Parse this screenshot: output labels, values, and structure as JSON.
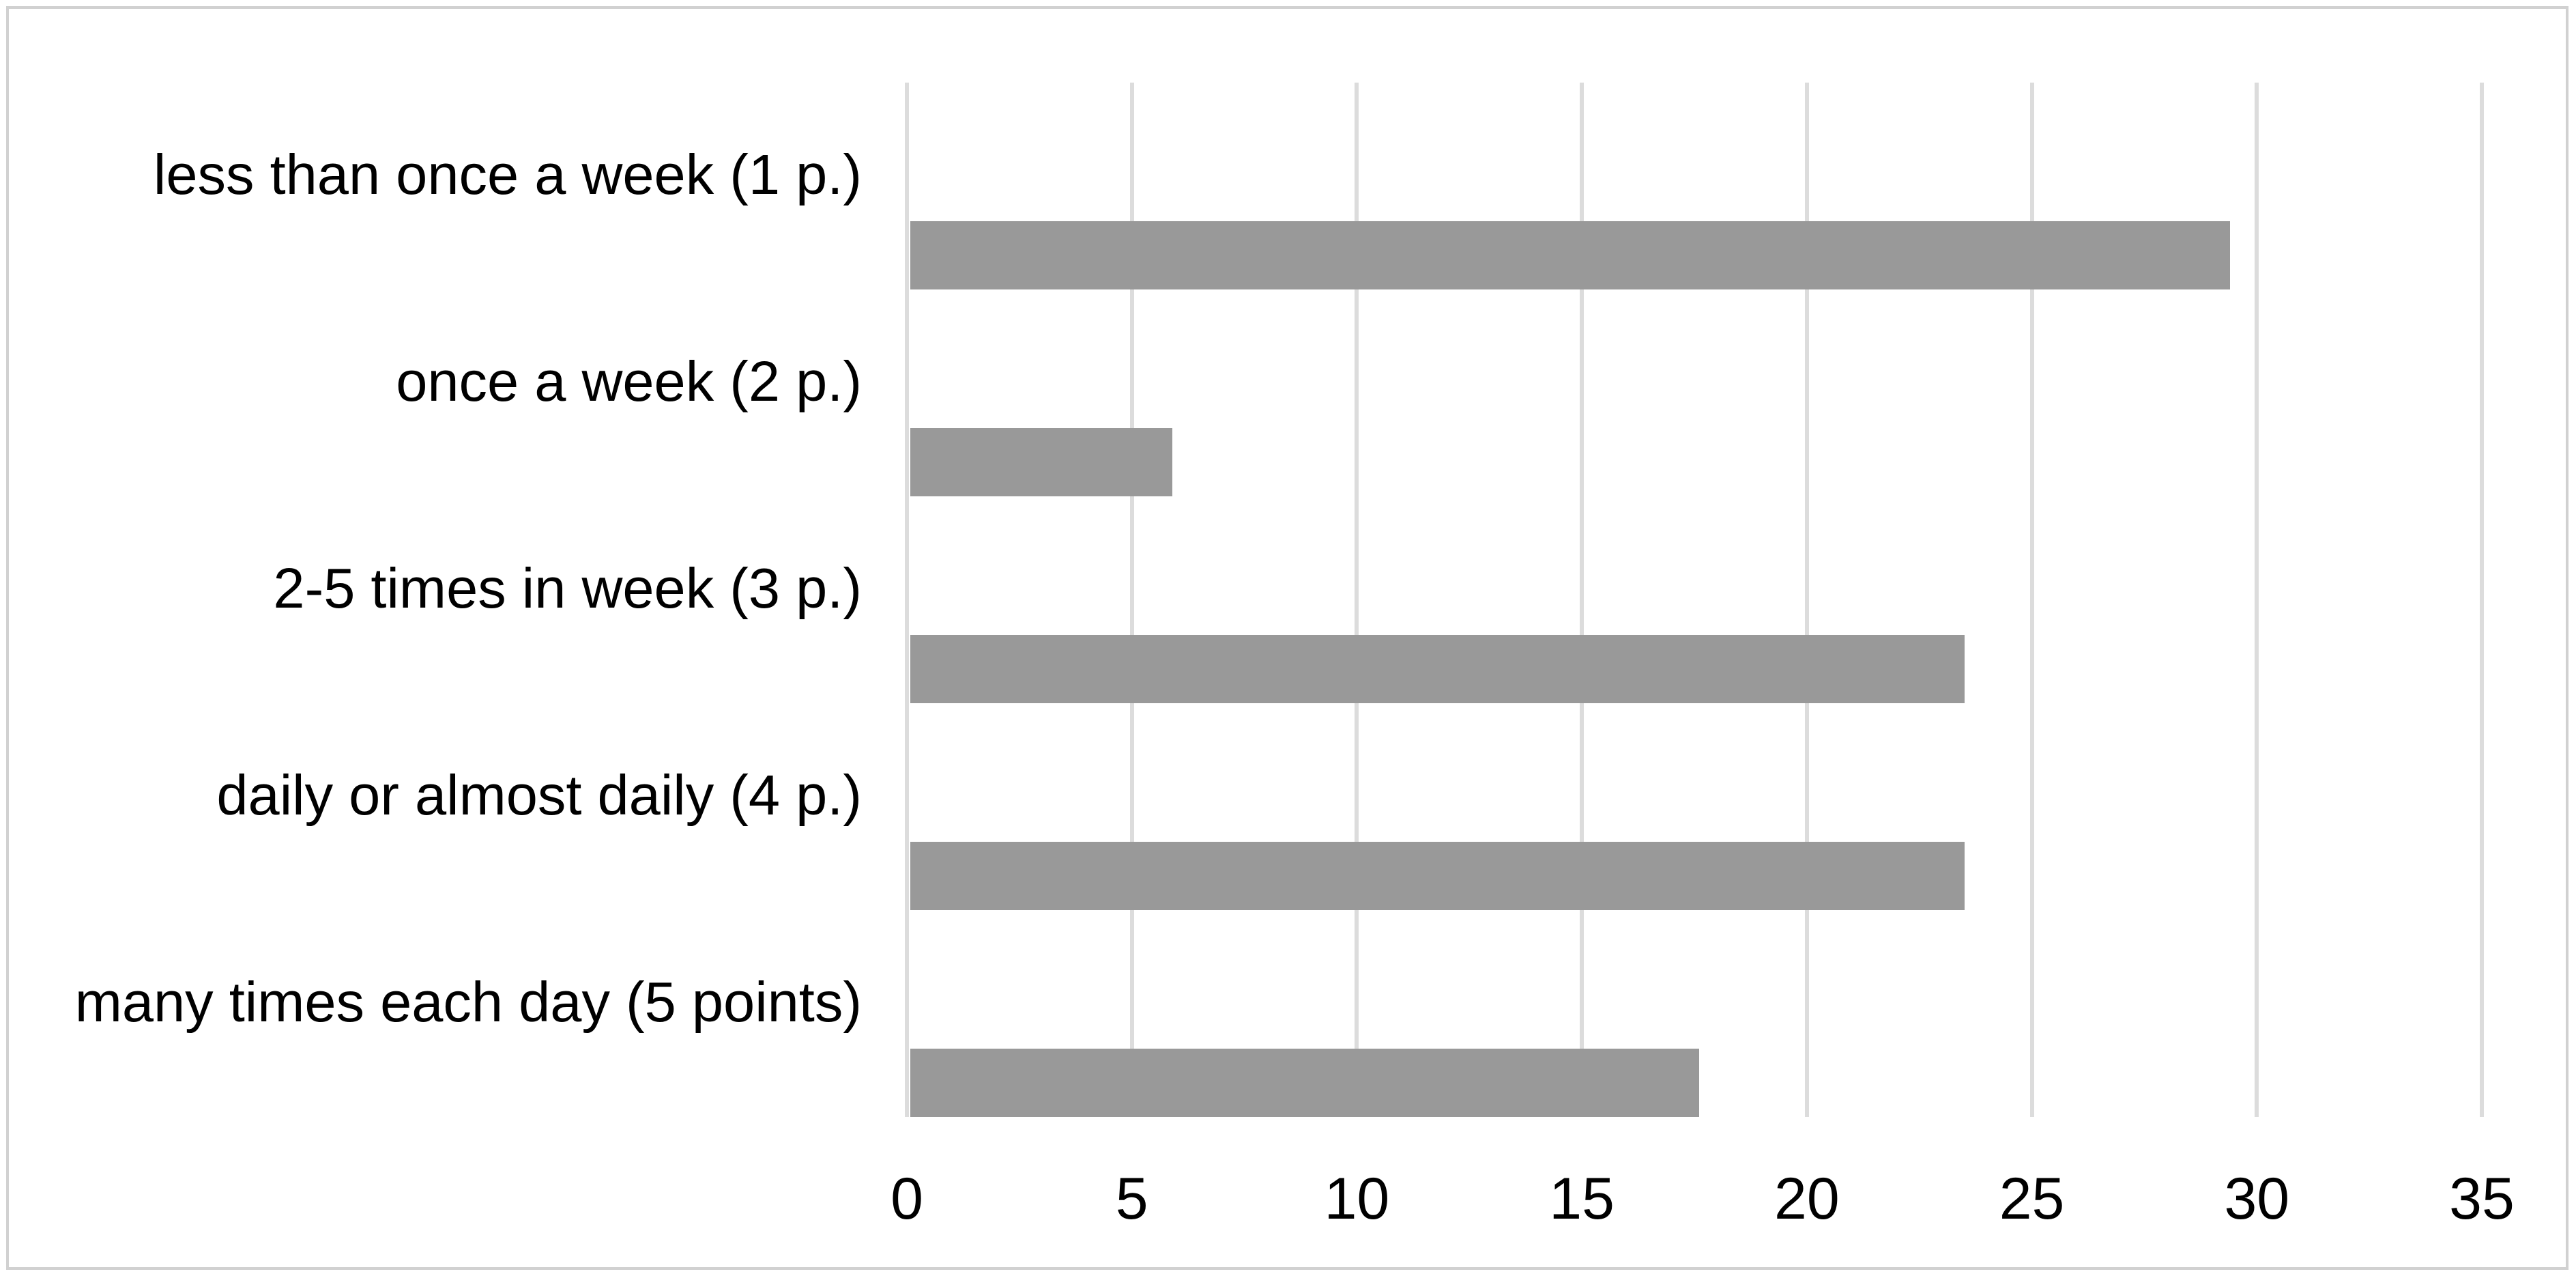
{
  "chart_data": {
    "type": "bar",
    "orientation": "horizontal",
    "title": "",
    "xlabel": "",
    "ylabel": "",
    "categories": [
      "less than once a week (1 p.)",
      "once a week (2 p.)",
      "2-5 times in week (3 p.)",
      "daily or almost daily (4 p.)",
      "many times each day (5 points)"
    ],
    "values": [
      29.4,
      5.9,
      23.5,
      23.5,
      17.6
    ],
    "xlim": [
      0,
      35
    ],
    "xticks": [
      "0",
      "5",
      "10",
      "15",
      "20",
      "25",
      "30",
      "35"
    ],
    "grid": "vertical-gridlines-on",
    "legend": "none",
    "colors": {
      "bar": "#999999",
      "gridline": "#dcdcdc",
      "frame_border": "#d1d1d1",
      "text": "#000000",
      "background": "#ffffff"
    }
  }
}
